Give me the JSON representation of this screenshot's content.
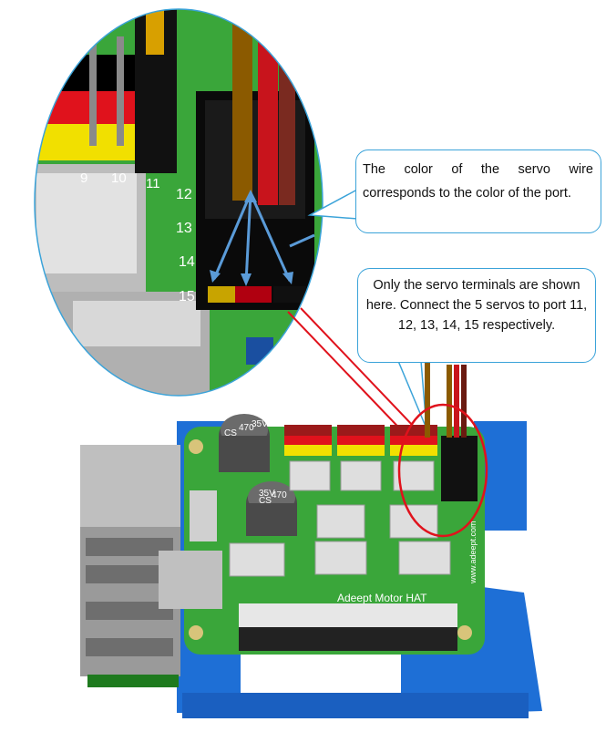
{
  "callouts": {
    "wire_color_note": "The color of the servo wire corresponds to the color of the port.",
    "terminals_note": "Only the servo terminals are shown here. Connect the 5 servos to port 11, 12, 13, 14, 15 respectively."
  },
  "zoom_view": {
    "port_numbers": [
      "9",
      "10",
      "11",
      "12",
      "13",
      "14",
      "15"
    ]
  },
  "board": {
    "brand_label": "Adeept Motor HAT",
    "side_url": "www.adeept.com",
    "capacitor_top": [
      "CS",
      "470",
      "35V"
    ],
    "capacitor_bottom": [
      "CS",
      "470",
      "35V"
    ]
  },
  "colors": {
    "pcb_green": "#3aa63a",
    "bracket_blue": "#1e6fd6",
    "callout_border": "#3ba3d9",
    "highlight_red": "#e0121c",
    "wire_red": "#c8141c",
    "port_yellow": "#f1e000"
  }
}
